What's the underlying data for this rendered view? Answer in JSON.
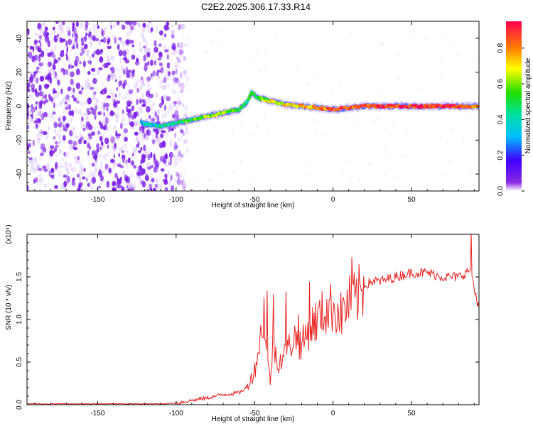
{
  "title": "C2E2.2025.306.17.33.R14",
  "chart_data": [
    {
      "type": "heatmap",
      "name": "spectrogram",
      "xlabel": "Height of straight line (km)",
      "ylabel": "Frequency (Hz)",
      "xlim": [
        -195,
        93
      ],
      "ylim": [
        -50,
        50
      ],
      "xticks": [
        -150,
        -100,
        -50,
        0,
        50
      ],
      "yticks": [
        -40,
        -20,
        0,
        20,
        40
      ],
      "colorbar": {
        "label": "Normalized spectral amplitude",
        "range": [
          0.0,
          0.95
        ],
        "ticks": [
          0.0,
          0.2,
          0.4,
          0.6,
          0.8
        ],
        "tick_labels": [
          "0.0",
          "0.2",
          "0.4",
          "0.6",
          "0.8"
        ]
      },
      "ridge": {
        "description": "dominant frequency track vs height",
        "x": [
          -122,
          -110,
          -100,
          -90,
          -80,
          -70,
          -60,
          -55,
          -52,
          -48,
          -40,
          -30,
          -20,
          -10,
          0,
          10,
          20,
          40,
          60,
          80,
          93
        ],
        "y": [
          -10,
          -12,
          -10,
          -8,
          -6,
          -4,
          -2,
          2,
          8,
          5,
          3,
          1,
          0,
          -1,
          -2,
          -1,
          0,
          0,
          0,
          0,
          0
        ],
        "amplitude": [
          0.3,
          0.4,
          0.45,
          0.55,
          0.6,
          0.6,
          0.55,
          0.5,
          0.45,
          0.55,
          0.65,
          0.7,
          0.75,
          0.8,
          0.82,
          0.85,
          0.88,
          0.9,
          0.9,
          0.85,
          0.7
        ]
      },
      "noise_region": {
        "x_range": [
          -195,
          -100
        ],
        "amplitude_range": [
          0.0,
          0.15
        ]
      }
    },
    {
      "type": "line",
      "name": "snr",
      "xlabel": "Height of straight line (km)",
      "ylabel": "SNR (10 * v/v)",
      "scale_note": "(x10⁴)",
      "xlim": [
        -195,
        93
      ],
      "ylim": [
        0,
        2.0
      ],
      "xticks": [
        -150,
        -100,
        -50,
        0,
        50
      ],
      "yticks": [
        0.0,
        0.5,
        1.0,
        1.5
      ],
      "ytick_labels": [
        "0.0",
        "0.5",
        "1.0",
        "1.5"
      ],
      "color": "#e8221f",
      "series": [
        {
          "name": "SNR",
          "x": [
            -195,
            -150,
            -110,
            -100,
            -90,
            -80,
            -70,
            -60,
            -55,
            -50,
            -46,
            -44,
            -42,
            -40,
            -38,
            -35,
            -30,
            -25,
            -20,
            -15,
            -10,
            -5,
            0,
            5,
            10,
            15,
            20,
            25,
            30,
            40,
            50,
            60,
            70,
            80,
            85,
            88,
            90,
            93
          ],
          "y": [
            0.01,
            0.01,
            0.01,
            0.02,
            0.05,
            0.08,
            0.12,
            0.14,
            0.2,
            0.4,
            0.8,
            1.1,
            0.5,
            0.3,
            0.7,
            0.5,
            0.6,
            0.8,
            0.7,
            0.9,
            1.0,
            1.1,
            1.15,
            1.05,
            1.2,
            1.25,
            1.4,
            1.45,
            1.45,
            1.5,
            1.55,
            1.55,
            1.5,
            1.5,
            1.55,
            1.6,
            1.35,
            1.15
          ],
          "spikes": [
            {
              "x": -42,
              "y": 1.32
            },
            {
              "x": -38,
              "y": 1.28
            },
            {
              "x": -30,
              "y": 1.45
            },
            {
              "x": -22,
              "y": 1.1
            },
            {
              "x": -15,
              "y": 1.35
            },
            {
              "x": 12,
              "y": 1.65
            },
            {
              "x": 88,
              "y": 1.98
            }
          ]
        }
      ]
    }
  ]
}
